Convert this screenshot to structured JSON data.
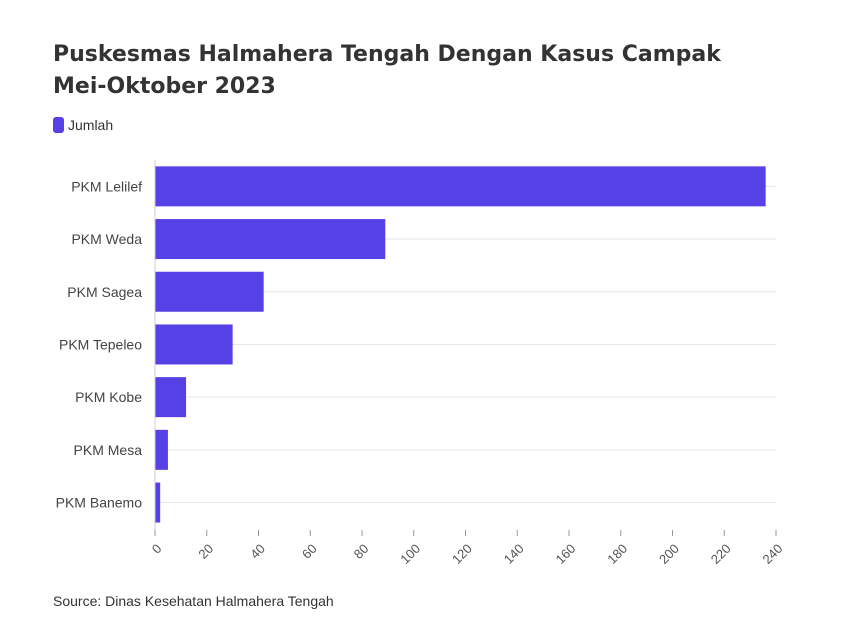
{
  "chart_data": {
    "type": "bar",
    "orientation": "horizontal",
    "title": "Puskesmas Halmahera Tengah Dengan Kasus Campak Mei-Oktober 2023",
    "categories": [
      "PKM Lelilef",
      "PKM Weda",
      "PKM Sagea",
      "PKM Tepeleo",
      "PKM Kobe",
      "PKM Mesa",
      "PKM Banemo"
    ],
    "series": [
      {
        "name": "Jumlah",
        "values": [
          236,
          89,
          42,
          30,
          12,
          5,
          2
        ],
        "color": "#5641e6"
      }
    ],
    "xlim": [
      0,
      240
    ],
    "xticks": [
      0,
      20,
      40,
      60,
      80,
      100,
      120,
      140,
      160,
      180,
      200,
      220,
      240
    ],
    "xlabel": "",
    "ylabel": "",
    "grid": true,
    "legend_position": "top-left",
    "source": "Source: Dinas Kesehatan Halmahera Tengah"
  }
}
